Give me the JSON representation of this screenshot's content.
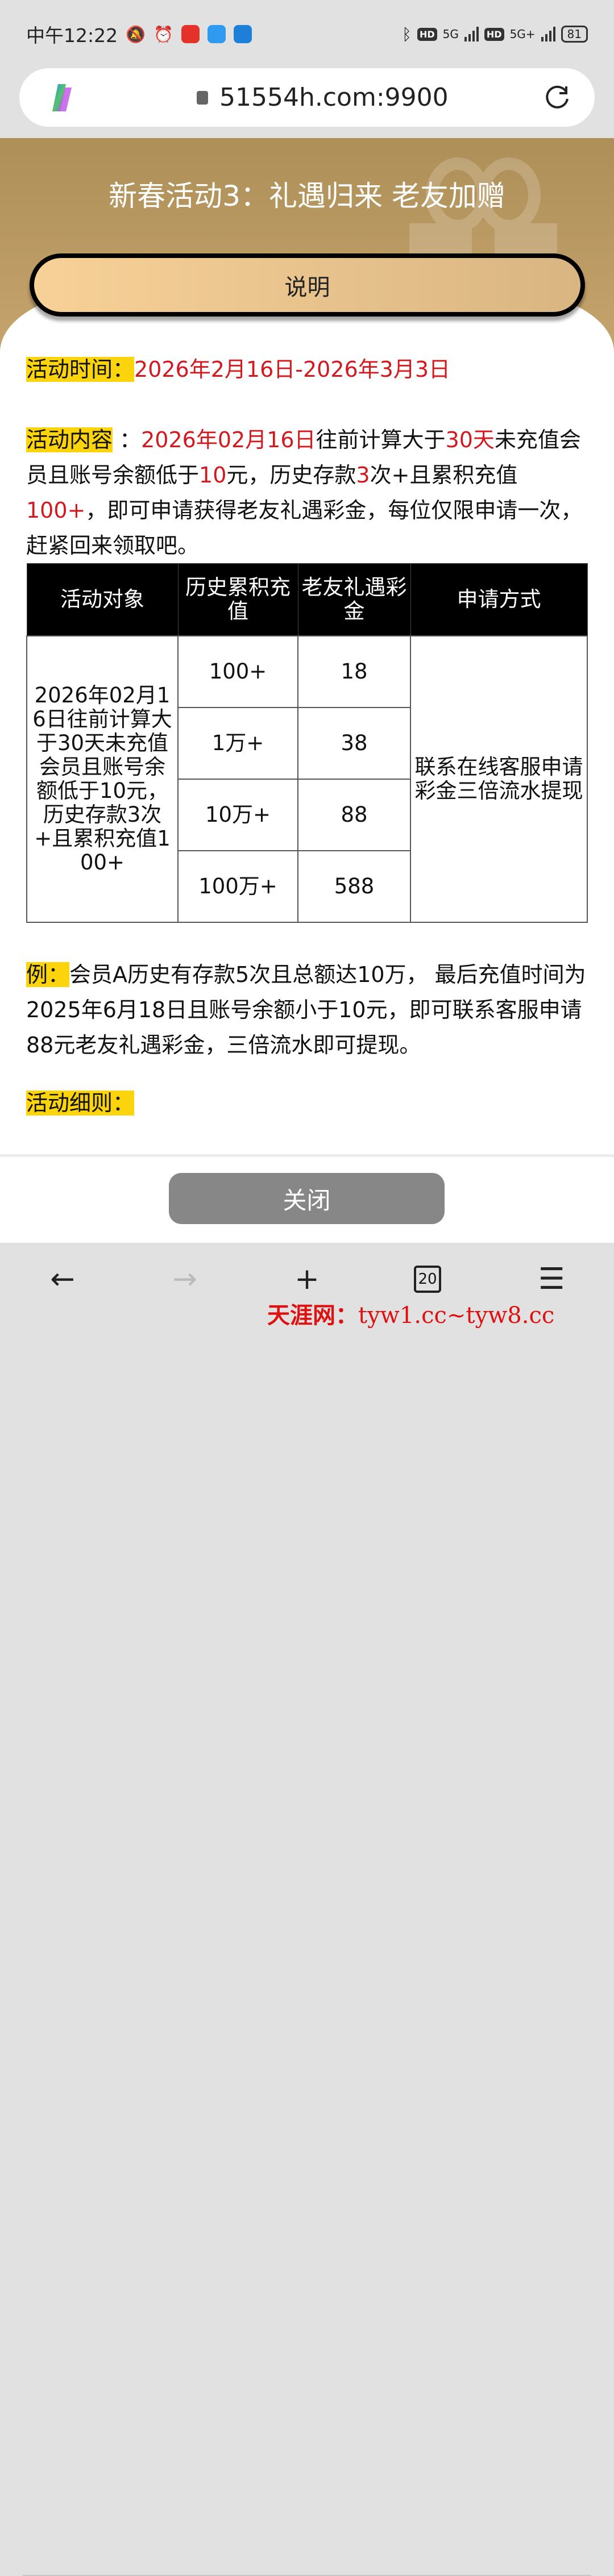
{
  "status_bar": {
    "time": "中午12:22",
    "battery": "81",
    "network1": "5G",
    "network2": "5G+",
    "hd": "HD"
  },
  "browser": {
    "url": "51554h.com:9900",
    "tab_count": "20"
  },
  "header": {
    "title": "新春活动3：礼遇归来 老友加赠",
    "explain_button": "说明"
  },
  "activity_time": {
    "label": "活动时间：",
    "value": "2026年2月16日-2026年3月3日"
  },
  "activity_content": {
    "label": "活动内容",
    "segments": [
      {
        "text": "：",
        "red": false
      },
      {
        "text": "2026年02月16日",
        "red": true
      },
      {
        "text": "往前计算大于",
        "red": false
      },
      {
        "text": "30天",
        "red": true
      },
      {
        "text": "未充值会员且账号余额低于",
        "red": false
      },
      {
        "text": "10",
        "red": true
      },
      {
        "text": "元，历史存款",
        "red": false
      },
      {
        "text": "3",
        "red": true
      },
      {
        "text": "次+且累积充值",
        "red": false
      },
      {
        "text": "100+",
        "red": true
      },
      {
        "text": "，即可申请获得老友礼遇彩金，每位仅限申请一次，赶紧回来领取吧。",
        "red": false
      }
    ]
  },
  "table": {
    "headers": [
      "活动对象",
      "历史累积充值",
      "老友礼遇彩金",
      "申请方式"
    ],
    "target": "2026年02月16日往前计算大于30天未充值会员且账号余额低于10元，历史存款3次+且累积充值100+",
    "rows": [
      {
        "deposit": "100+",
        "bonus": "18"
      },
      {
        "deposit": "1万+",
        "bonus": "38"
      },
      {
        "deposit": "10万+",
        "bonus": "88"
      },
      {
        "deposit": "100万+",
        "bonus": "588"
      }
    ],
    "method": "联系在线客服申请彩金三倍流水提现"
  },
  "example": {
    "label": "例：",
    "text": "会员A历史有存款5次且总额达10万， 最后充值时间为2025年6月18日且账号余额小于10元，即可联系客服申请88元老友礼遇彩金，三倍流水即可提现。"
  },
  "rules": {
    "label": "活动细则："
  },
  "footer": {
    "close_button": "关闭"
  },
  "watermark": {
    "name": "天涯网：",
    "sites": "tyw1.cc~tyw8.cc"
  },
  "colors": {
    "highlight": "#fbd40c",
    "red": "#d3191e",
    "gold": "#c7a56e",
    "close_button": "#878787"
  }
}
